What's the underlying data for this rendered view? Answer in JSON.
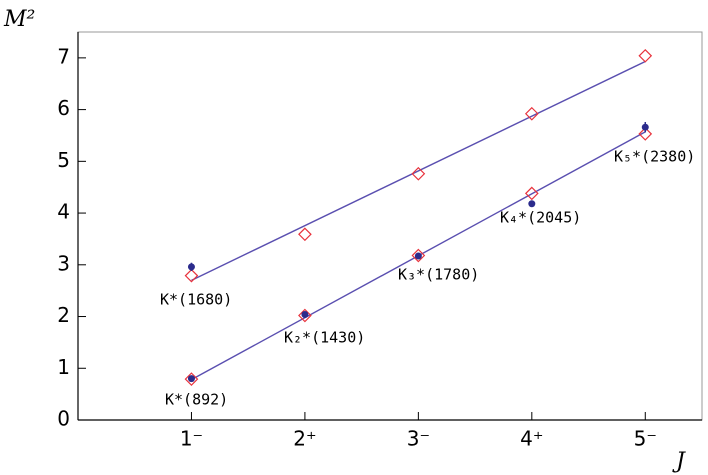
{
  "chart_data": {
    "type": "scatter",
    "x_label": "J",
    "y_label": "M²",
    "xlim": [
      0,
      5.5
    ],
    "ylim": [
      0,
      7.5
    ],
    "xticks": [
      {
        "value": 1,
        "label": "1⁻"
      },
      {
        "value": 2,
        "label": "2⁺"
      },
      {
        "value": 3,
        "label": "3⁻"
      },
      {
        "value": 4,
        "label": "4⁺"
      },
      {
        "value": 5,
        "label": "5⁻"
      }
    ],
    "yticks": [
      0,
      1,
      2,
      3,
      4,
      5,
      6,
      7
    ],
    "series": [
      {
        "color": "#e8323c",
        "marker": "diamond",
        "x": [
          1,
          2,
          3,
          4,
          5
        ],
        "values": [
          2.79,
          3.59,
          4.76,
          5.92,
          7.04
        ]
      },
      {
        "color": "#e8323c",
        "marker": "diamond",
        "x": [
          1,
          2,
          3,
          4,
          5
        ],
        "values": [
          0.79,
          2.02,
          3.18,
          4.38,
          5.53
        ]
      },
      {
        "color": "#2b2b8c",
        "marker": "dot",
        "x": [
          1,
          1,
          2,
          3,
          4,
          5
        ],
        "values": [
          0.8,
          2.96,
          2.04,
          3.17,
          4.18,
          5.66
        ],
        "errors": [
          0.03,
          0.08,
          0.03,
          0.03,
          0.03,
          0.1
        ]
      }
    ],
    "fit_lines": [
      {
        "color": "#5a4fb0",
        "x": [
          1,
          5
        ],
        "values": [
          2.7,
          6.93
        ]
      },
      {
        "color": "#5a4fb0",
        "x": [
          1,
          5
        ],
        "values": [
          0.78,
          5.57
        ]
      }
    ],
    "annotations": [
      "K*(1680)",
      "K*(892)",
      "K₂*(1430)",
      "K₃*(1780)",
      "K₄*(2045)",
      "K₅*(2380)"
    ]
  }
}
